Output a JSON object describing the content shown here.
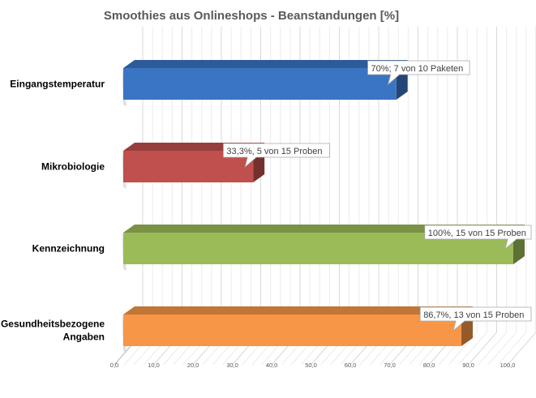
{
  "chart_data": {
    "type": "bar",
    "orientation": "horizontal",
    "style": "3d",
    "title": "Smoothies aus Onlineshops - Beanstandungen [%]",
    "categories": [
      "Eingangstemperatur",
      "Mikrobiologie",
      "Kennzeichnung",
      "Gesundheitsbezogene Angaben"
    ],
    "category_lines": [
      [
        "Eingangstemperatur"
      ],
      [
        "Mikrobiologie"
      ],
      [
        "Kennzeichnung"
      ],
      [
        "Gesundheitsbezogene",
        "Angaben"
      ]
    ],
    "values": [
      70,
      33.3,
      100,
      86.7
    ],
    "data_labels": [
      "70%; 7 von 10 Paketen",
      "33,3%, 5 von 15 Proben",
      "100%, 15 von 15 Proben",
      "86,7%, 13 von 15 Proben"
    ],
    "colors": [
      "#3a75c4",
      "#c0504d",
      "#9bbb59",
      "#f79646"
    ],
    "xlim": [
      0,
      100
    ],
    "x_ticks": [
      "0,0",
      "10,0",
      "20,0",
      "30,0",
      "40,0",
      "50,0",
      "60,0",
      "70,0",
      "80,0",
      "90,0",
      "100,0"
    ],
    "grid": true,
    "legend": "none"
  }
}
